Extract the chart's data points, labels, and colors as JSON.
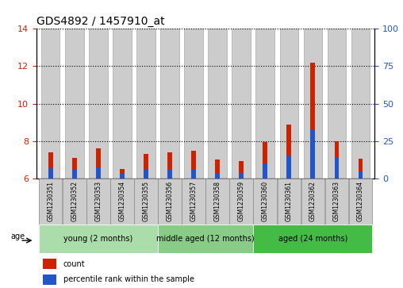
{
  "title": "GDS4892 / 1457910_at",
  "samples": [
    "GSM1230351",
    "GSM1230352",
    "GSM1230353",
    "GSM1230354",
    "GSM1230355",
    "GSM1230356",
    "GSM1230357",
    "GSM1230358",
    "GSM1230359",
    "GSM1230360",
    "GSM1230361",
    "GSM1230362",
    "GSM1230363",
    "GSM1230364"
  ],
  "count_values": [
    7.4,
    7.1,
    7.6,
    6.5,
    7.3,
    7.4,
    7.5,
    7.0,
    6.95,
    7.95,
    8.9,
    12.2,
    8.0,
    7.05
  ],
  "percentile_values": [
    6.55,
    6.45,
    6.6,
    6.3,
    6.5,
    6.5,
    6.45,
    6.3,
    6.3,
    6.8,
    7.2,
    8.6,
    7.1,
    6.4
  ],
  "bar_base": 6.0,
  "ylim_left": [
    6,
    14
  ],
  "ylim_right": [
    0,
    100
  ],
  "yticks_left": [
    6,
    8,
    10,
    12,
    14
  ],
  "yticks_right": [
    0,
    25,
    50,
    75,
    100
  ],
  "color_count": "#cc2200",
  "color_percentile": "#2255cc",
  "groups": [
    {
      "label": "young (2 months)",
      "start": 0,
      "end": 5,
      "color": "#aaddaa"
    },
    {
      "label": "middle aged (12 months)",
      "start": 5,
      "end": 9,
      "color": "#88cc88"
    },
    {
      "label": "aged (24 months)",
      "start": 9,
      "end": 14,
      "color": "#44bb44"
    }
  ],
  "bar_width": 0.5,
  "bar_color_bg": "#cccccc",
  "xlabel_color_left": "#cc2200",
  "xlabel_color_right": "#2255cc",
  "legend_count_label": "count",
  "legend_percentile_label": "percentile rank within the sample",
  "age_label": "age",
  "background_color": "#ffffff"
}
